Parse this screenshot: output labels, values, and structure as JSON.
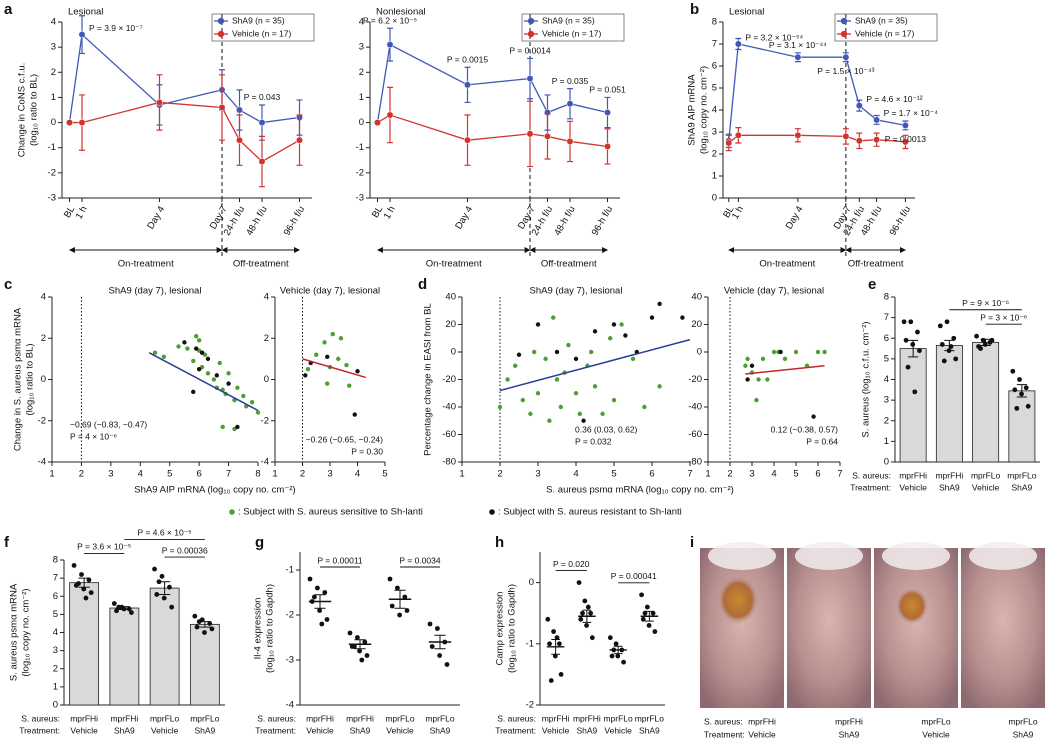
{
  "chart_data": [
    {
      "type": "line",
      "panel_label": "a",
      "title": "Lesional",
      "categories": [
        "BL",
        "1 h",
        "Day 4",
        "Day 7",
        "24-h f/u",
        "48-h f/u",
        "96-h f/u"
      ],
      "series": [
        {
          "name": "ShA9 (n = 35)",
          "color": "#4258b8",
          "values": [
            0,
            3.5,
            0.7,
            1.3,
            0.5,
            0,
            0.2
          ],
          "errors": [
            0,
            0.75,
            0.8,
            0.8,
            0.8,
            0.7,
            0.7
          ]
        },
        {
          "name": "Vehicle (n = 17)",
          "color": "#d0342c",
          "values": [
            0,
            0,
            0.8,
            0.6,
            -0.7,
            -1.55,
            -0.7
          ],
          "errors": [
            0,
            1.1,
            1.1,
            1.3,
            1.0,
            1.0,
            1.0
          ]
        }
      ],
      "p_values": [
        null,
        "P = 3.9 × 10⁻⁷",
        null,
        null,
        null,
        "P = 0.043",
        null
      ],
      "ylim": [
        -3,
        4
      ],
      "yticks": [
        -3,
        -2,
        -1,
        0,
        1,
        2,
        3,
        4
      ],
      "ylabel": [
        "Change in CoNS c.f.u.",
        "(log₁₀ ratio to BL)"
      ],
      "phases": [
        "On-treatment",
        "Off-treatment"
      ]
    },
    {
      "type": "line",
      "title": "Nonlesional",
      "categories": [
        "BL",
        "1 h",
        "Day 4",
        "Day 7",
        "24-h f/u",
        "48-h f/u",
        "96-h f/u"
      ],
      "series": [
        {
          "name": "ShA9 (n = 35)",
          "color": "#4258b8",
          "values": [
            0,
            3.1,
            1.5,
            1.75,
            0.4,
            0.75,
            0.4
          ],
          "errors": [
            0,
            0.65,
            0.7,
            0.8,
            0.7,
            0.6,
            0.6
          ]
        },
        {
          "name": "Vehicle (n = 17)",
          "color": "#d0342c",
          "values": [
            0,
            0.3,
            -0.7,
            -0.45,
            -0.55,
            -0.75,
            -0.95
          ],
          "errors": [
            0,
            1.1,
            1.0,
            1.3,
            0.9,
            0.8,
            0.7
          ]
        }
      ],
      "p_values": [
        null,
        "P = 6.2 × 10⁻⁵",
        "P = 0.0015",
        "P = 0.0014",
        null,
        "P = 0.035",
        "P = 0.051"
      ],
      "ylim": [
        -3,
        4
      ],
      "yticks": [
        -3,
        -2,
        -1,
        0,
        1,
        2,
        3,
        4
      ],
      "phases": [
        "On-treatment",
        "Off-treatment"
      ]
    },
    {
      "type": "line",
      "panel_label": "b",
      "title": "Lesional",
      "categories": [
        "BL",
        "1 h",
        "Day 4",
        "Day 7",
        "24-h f/u",
        "48-h f/u",
        "96-h f/u"
      ],
      "series": [
        {
          "name": "ShA9 (n = 35)",
          "color": "#4258b8",
          "values": [
            2.6,
            7.0,
            6.4,
            6.4,
            4.2,
            3.55,
            3.3
          ],
          "errors": [
            0.3,
            0.25,
            0.2,
            0.2,
            0.25,
            0.2,
            0.2
          ]
        },
        {
          "name": "Vehicle (n = 17)",
          "color": "#d0342c",
          "values": [
            2.5,
            2.85,
            2.85,
            2.8,
            2.6,
            2.65,
            2.55
          ],
          "errors": [
            0.35,
            0.35,
            0.3,
            0.35,
            0.35,
            0.3,
            0.3
          ]
        }
      ],
      "p_values": [
        null,
        "P = 3.2 × 10⁻⁵⁴",
        "P = 3.1 × 10⁻⁴⁴",
        "P = 1.5 × 10⁻⁴³",
        "P = 4.6 × 10⁻¹²",
        "P = 1.7 × 10⁻⁴",
        "P = 0.0013"
      ],
      "ylim": [
        0,
        8
      ],
      "yticks": [
        0,
        1,
        2,
        3,
        4,
        5,
        6,
        7,
        8
      ],
      "ylabel": [
        "ShA9 AIP mRNA",
        "(log₁₀ copy no. cm⁻²)"
      ],
      "phases": [
        "On-treatment",
        "Off-treatment"
      ]
    },
    {
      "type": "scatter",
      "panel_label": "c",
      "title": "ShA9 (day 7), lesional",
      "series": [
        {
          "name": ": Subject with S. aureus sensitive to Sh-lanti",
          "color": "#4f9e2f",
          "x": [
            4.5,
            4.8,
            5.3,
            5.6,
            5.8,
            6.0,
            6.1,
            6.2,
            6.3,
            6.5,
            6.6,
            6.7,
            6.8,
            6.9,
            7.0,
            7.2,
            7.3,
            7.5,
            7.6,
            7.8,
            8.0,
            6.8,
            7.2,
            6.0,
            5.9
          ],
          "values": [
            1.3,
            1.1,
            1.6,
            1.5,
            0.9,
            1.4,
            0.6,
            1.2,
            0.3,
            0.0,
            -0.4,
            0.8,
            -0.5,
            -0.7,
            0.3,
            -1.0,
            -0.4,
            -0.8,
            -1.3,
            -1.1,
            -1.6,
            -2.3,
            -2.4,
            1.9,
            2.1
          ]
        },
        {
          "name": ": Subject with S. aureus resistant to Sh-lanti",
          "color": "#111111",
          "x": [
            5.5,
            5.9,
            6.1,
            6.3,
            6.6,
            6.0,
            7.0,
            7.3,
            5.8
          ],
          "values": [
            1.8,
            1.5,
            1.3,
            1.0,
            0.2,
            0.5,
            -0.2,
            -2.3,
            -0.6
          ]
        }
      ],
      "fit": {
        "x": [
          4.3,
          8
        ],
        "y": [
          1.3,
          -1.5
        ]
      },
      "vline": 2,
      "stats": [
        "−0.69 (−0.83, −0.47)",
        "P = 4 × 10⁻⁶"
      ],
      "xlim": [
        1,
        8
      ],
      "xticks": [
        1,
        2,
        3,
        4,
        5,
        6,
        7,
        8
      ],
      "ylim": [
        -4,
        4
      ],
      "yticks": [
        -4,
        -2,
        0,
        2,
        4
      ],
      "ylabel": [
        "Change in S. aureus psmα mRNA",
        "(log₁₀ ratio to BL)"
      ],
      "xlabel": "ShA9 AIP mRNA (log₁₀ copy no. cm⁻²)"
    },
    {
      "type": "scatter",
      "title": "Vehicle (day 7), lesional",
      "series": [
        {
          "color": "#4f9e2f",
          "x": [
            2.2,
            2.5,
            2.8,
            3.1,
            3.3,
            3.0,
            3.6,
            3.7,
            2.9,
            3.4
          ],
          "values": [
            0.5,
            1.2,
            1.8,
            2.2,
            1.0,
            0.6,
            0.7,
            -0.3,
            -0.2,
            2.0
          ]
        },
        {
          "color": "#111111",
          "x": [
            2.1,
            2.3,
            2.9,
            3.9,
            4.0
          ],
          "values": [
            0.2,
            0.8,
            1.1,
            -1.7,
            0.4
          ]
        }
      ],
      "fit": {
        "x": [
          2,
          4.3
        ],
        "y": [
          1.0,
          0.1
        ]
      },
      "vline": 2,
      "stats": [
        "−0.26 (−0.65, −0.24)",
        "P = 0.30"
      ],
      "xlim": [
        1,
        5
      ],
      "xticks": [
        1,
        2,
        3,
        4,
        5
      ],
      "ylim": [
        -4,
        4
      ],
      "yticks": [
        -4,
        -2,
        0,
        2,
        4
      ]
    },
    {
      "type": "scatter",
      "panel_label": "d",
      "title": "ShA9 (day 7), lesional",
      "series": [
        {
          "color": "#4f9e2f",
          "x": [
            2.0,
            2.2,
            2.4,
            2.6,
            2.8,
            3.0,
            3.2,
            3.3,
            3.5,
            3.6,
            3.7,
            3.8,
            4.0,
            4.1,
            4.3,
            4.4,
            4.5,
            4.7,
            4.9,
            5.0,
            5.2,
            5.5,
            5.8,
            6.2,
            3.4,
            2.9
          ],
          "values": [
            -40,
            -20,
            -10,
            -35,
            -45,
            -30,
            -5,
            -50,
            -20,
            -40,
            -15,
            5,
            -30,
            -45,
            -10,
            0,
            -25,
            -45,
            10,
            -35,
            20,
            -5,
            -40,
            -25,
            25,
            0
          ]
        },
        {
          "color": "#111111",
          "x": [
            2.5,
            3.0,
            3.5,
            4.0,
            4.5,
            5.0,
            5.3,
            5.6,
            6.0,
            6.2,
            6.8,
            4.2
          ],
          "values": [
            -2,
            20,
            0,
            -5,
            15,
            20,
            12,
            0,
            25,
            35,
            25,
            -50
          ]
        }
      ],
      "fit": {
        "x": [
          2,
          7
        ],
        "y": [
          -28,
          9
        ]
      },
      "vline": 2,
      "stats": [
        "0.36 (0.03, 0.62)",
        "P = 0.032"
      ],
      "xlim": [
        1,
        7
      ],
      "xticks": [
        1,
        2,
        3,
        4,
        5,
        6,
        7
      ],
      "ylim": [
        -80,
        40
      ],
      "yticks": [
        -80,
        -60,
        -40,
        -20,
        0,
        20,
        40
      ],
      "ylabel": [
        "Percentage change in EASI from BL"
      ],
      "xlabel": "S. aureus psmα mRNA (log₁₀ copy no. cm⁻²)"
    },
    {
      "type": "scatter",
      "title": "Vehicle (day 7), lesional",
      "series": [
        {
          "color": "#4f9e2f",
          "x": [
            2.7,
            3.0,
            3.2,
            3.5,
            3.7,
            4.0,
            4.2,
            4.5,
            5.0,
            5.5,
            6.0,
            6.3,
            2.8,
            3.3
          ],
          "values": [
            -10,
            -15,
            -35,
            -5,
            -20,
            0,
            0,
            -5,
            0,
            -10,
            0,
            0,
            -5,
            -20
          ]
        },
        {
          "color": "#111111",
          "x": [
            2.8,
            4.3,
            5.8,
            3.0
          ],
          "values": [
            -20,
            0,
            -47,
            -10
          ]
        }
      ],
      "fit": {
        "x": [
          2.7,
          6.3
        ],
        "y": [
          -16,
          -10
        ]
      },
      "vline": 2,
      "stats": [
        "0.12 (−0.38, 0.57)",
        "P = 0.64"
      ],
      "xlim": [
        1,
        7
      ],
      "xticks": [
        1,
        2,
        3,
        4,
        5,
        6,
        7
      ],
      "ylim": [
        -80,
        40
      ],
      "yticks": [
        -80,
        -60,
        -40,
        -20,
        0,
        20,
        40
      ]
    },
    {
      "type": "bar",
      "panel_label": "e",
      "color": "#d9d9d9",
      "categories": [
        "mprFHi",
        "mprFHi",
        "mprFLo",
        "mprFLo"
      ],
      "treatments": [
        "Vehicle",
        "ShA9",
        "Vehicle",
        "ShA9"
      ],
      "row_labels": [
        "S. aureus:",
        "Treatment:"
      ],
      "values": [
        5.5,
        5.65,
        5.8,
        3.45
      ],
      "errors": [
        0.4,
        0.25,
        0.15,
        0.3
      ],
      "points": [
        [
          6.8,
          6.8,
          6.3,
          5.9,
          5.7,
          5.4,
          4.6,
          3.4
        ],
        [
          6.6,
          6.8,
          6.0,
          5.7,
          5.4,
          5.0,
          4.9,
          5.6
        ],
        [
          6.1,
          5.9,
          5.8,
          5.6,
          5.7,
          5.9,
          5.5
        ],
        [
          4.4,
          4.0,
          3.6,
          3.5,
          3.3,
          2.7,
          2.6
        ]
      ],
      "comparisons": [
        {
          "groups": [
            1,
            3
          ],
          "label": "P = 9 × 10⁻⁶"
        },
        {
          "groups": [
            2,
            3
          ],
          "label": "P = 3 × 10⁻⁶"
        }
      ],
      "ylim": [
        0,
        8
      ],
      "yticks": [
        0,
        1,
        2,
        3,
        4,
        5,
        6,
        7,
        8
      ],
      "ylabel": [
        "S. aureus (log₁₀ c.f.u. cm⁻²)"
      ]
    },
    {
      "type": "bar",
      "panel_label": "f",
      "color": "#d9d9d9",
      "categories": [
        "mprFHi",
        "mprFHi",
        "mprFLo",
        "mprFLo"
      ],
      "treatments": [
        "Vehicle",
        "ShA9",
        "Vehicle",
        "ShA9"
      ],
      "row_labels": [
        "S. aureus:",
        "Treatment:"
      ],
      "values": [
        6.75,
        5.35,
        6.45,
        4.45
      ],
      "errors": [
        0.25,
        0.08,
        0.35,
        0.15
      ],
      "points": [
        [
          7.7,
          7.2,
          6.9,
          6.6,
          6.4,
          6.2,
          6.7,
          5.9
        ],
        [
          5.6,
          5.4,
          5.3,
          5.2,
          5.3,
          5.1,
          5.4
        ],
        [
          7.5,
          7.1,
          6.5,
          6.1,
          5.9,
          5.4,
          6.8
        ],
        [
          4.9,
          4.7,
          4.5,
          4.3,
          4.0,
          4.2,
          4.6
        ]
      ],
      "comparisons": [
        {
          "groups": [
            0,
            1
          ],
          "label": "P = 3.6 × 10⁻⁵"
        },
        {
          "groups": [
            1,
            3
          ],
          "label": "P = 4.6 × 10⁻⁵"
        },
        {
          "groups": [
            2,
            3
          ],
          "label": "P = 0.00036"
        }
      ],
      "ylim": [
        0,
        8
      ],
      "yticks": [
        0,
        1,
        2,
        3,
        4,
        5,
        6,
        7,
        8
      ],
      "ylabel": [
        "S. aureus psmα mRNA",
        "(log₁₀ copy no. cm⁻²)"
      ]
    },
    {
      "type": "dot",
      "panel_label": "g",
      "categories": [
        "mprFHi",
        "mprFHi",
        "mprFLo",
        "mprFLo"
      ],
      "treatments": [
        "Vehicle",
        "ShA9",
        "Vehicle",
        "ShA9"
      ],
      "row_labels": [
        "S. aureus:",
        "Treatment:"
      ],
      "values": [
        -1.7,
        -2.65,
        -1.65,
        -2.6
      ],
      "errors": [
        0.15,
        0.1,
        0.2,
        0.15
      ],
      "points": [
        [
          -1.2,
          -1.4,
          -1.5,
          -1.7,
          -1.9,
          -2.1,
          -1.6,
          -2.2
        ],
        [
          -2.4,
          -2.5,
          -2.6,
          -2.7,
          -2.8,
          -2.9,
          -2.7,
          -3.0
        ],
        [
          -1.2,
          -1.4,
          -1.6,
          -1.8,
          -2.0,
          -1.9
        ],
        [
          -2.2,
          -2.3,
          -2.6,
          -2.7,
          -2.9,
          -3.1
        ]
      ],
      "comparisons": [
        {
          "groups": [
            0,
            1
          ],
          "label": "P = 0.00011"
        },
        {
          "groups": [
            2,
            3
          ],
          "label": "P = 0.0034"
        }
      ],
      "ylim": [
        -4,
        -0.6
      ],
      "yticks": [
        -4,
        -3,
        -2,
        -1
      ],
      "ylabel": [
        "Il-4 expression",
        "(log₁₀ ratio to Gapdh)"
      ]
    },
    {
      "type": "dot",
      "panel_label": "h",
      "categories": [
        "mprFHi",
        "mprFHi",
        "mprFLo",
        "mprFLo"
      ],
      "treatments": [
        "Vehicle",
        "ShA9",
        "Vehicle",
        "ShA9"
      ],
      "row_labels": [
        "S. aureus:",
        "Treatment:"
      ],
      "values": [
        -1.05,
        -0.55,
        -1.1,
        -0.55
      ],
      "errors": [
        0.12,
        0.1,
        0.06,
        0.08
      ],
      "points": [
        [
          -0.6,
          -0.8,
          -1.0,
          -1.0,
          -1.2,
          -1.5,
          -1.6,
          -0.9
        ],
        [
          0.0,
          -0.3,
          -0.5,
          -0.6,
          -0.7,
          -0.9,
          -0.5,
          -0.4
        ],
        [
          -0.9,
          -1.0,
          -1.1,
          -1.2,
          -1.2,
          -1.3,
          -1.1
        ],
        [
          -0.2,
          -0.4,
          -0.5,
          -0.6,
          -0.7,
          -0.8,
          -0.5
        ]
      ],
      "comparisons": [
        {
          "groups": [
            0,
            1
          ],
          "label": "P = 0.020"
        },
        {
          "groups": [
            2,
            3
          ],
          "label": "P = 0.00041"
        }
      ],
      "ylim": [
        -2,
        0.5
      ],
      "yticks": [
        -2,
        -1,
        0
      ],
      "ylabel": [
        "Camp expression",
        "(log₁₀ ratio to Gapdh)"
      ]
    }
  ],
  "photo_panel": {
    "panel_label": "i",
    "row_labels": [
      "S. aureus:",
      "Treatment:"
    ],
    "categories": [
      "mprFHi",
      "mprFHi",
      "mprFLo",
      "mprFLo"
    ],
    "treatments": [
      "Vehicle",
      "ShA9",
      "Vehicle",
      "ShA9"
    ]
  }
}
